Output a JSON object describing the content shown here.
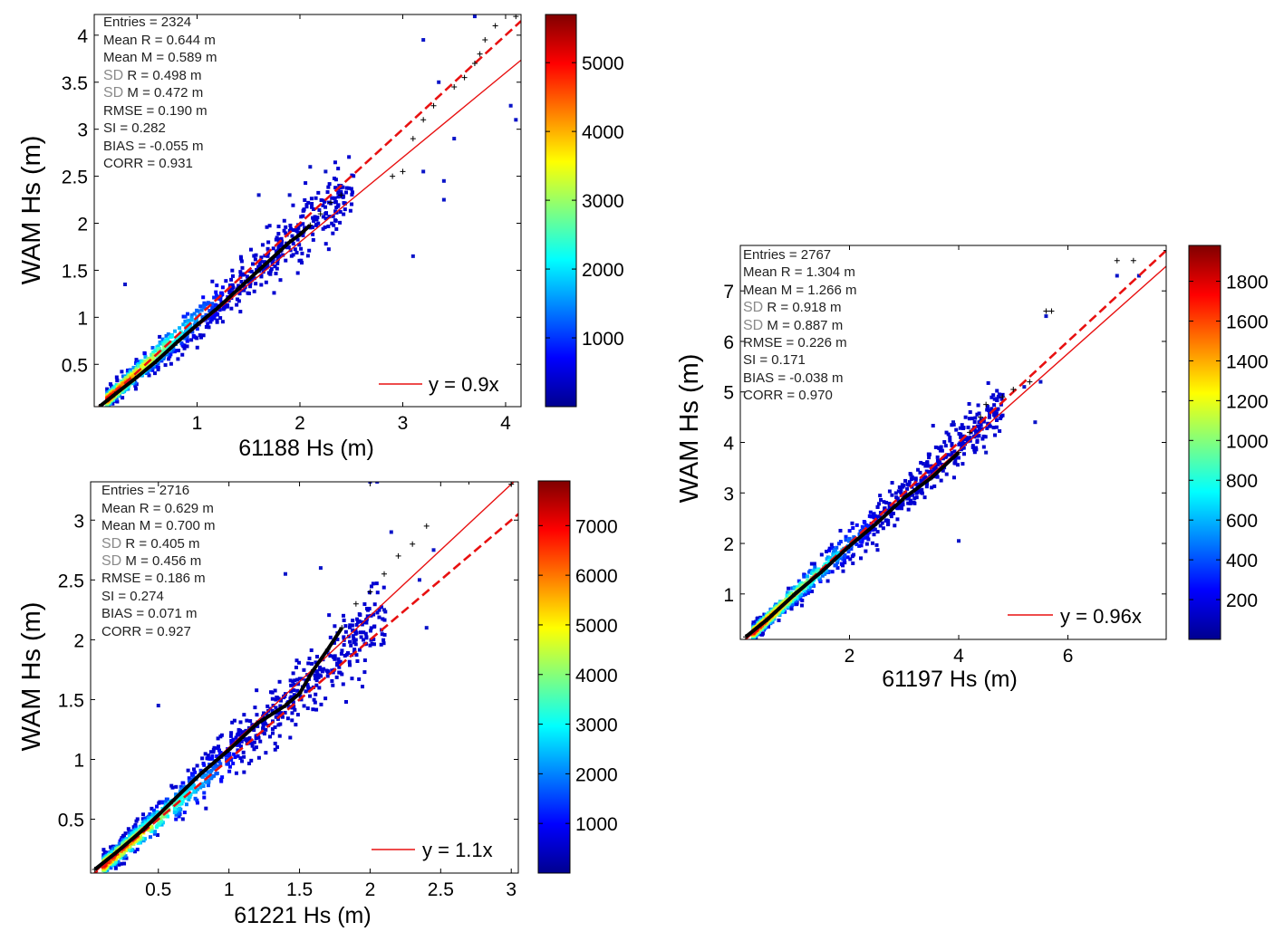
{
  "chart_data": [
    {
      "type": "scatter",
      "id": "panel-61188",
      "xlabel": "61188 Hs (m)",
      "ylabel": "WAM Hs (m)",
      "xlim": [
        0.0,
        4.15
      ],
      "ylim": [
        0.05,
        4.22
      ],
      "xticks": [
        1,
        2,
        3,
        4
      ],
      "yticks": [
        0.5,
        1,
        1.5,
        2,
        2.5,
        3,
        3.5,
        4
      ],
      "stats": {
        "entries": "Entries = 2324",
        "mean_r": "Mean R = 0.644 m",
        "mean_m": "Mean M = 0.589 m",
        "sd_r_prefix": "SD",
        "sd_r": " R = 0.498 m",
        "sd_m_prefix": "SD",
        "sd_m": " M = 0.472 m",
        "rmse": "RMSE = 0.190 m",
        "si": "SI = 0.282",
        "bias": "BIAS = -0.055 m",
        "corr": "CORR = 0.931"
      },
      "legend": "y = 0.9x",
      "fit_slope": 0.9,
      "dashed_slope": 1.0,
      "colorbar_range": [
        0,
        5700
      ],
      "colorbar_ticks": [
        1000,
        2000,
        3000,
        4000,
        5000
      ],
      "qq_points": [
        [
          0.05,
          0.05
        ],
        [
          0.2,
          0.18
        ],
        [
          0.4,
          0.35
        ],
        [
          0.6,
          0.53
        ],
        [
          0.8,
          0.73
        ],
        [
          1.0,
          0.92
        ],
        [
          1.2,
          1.1
        ],
        [
          1.4,
          1.3
        ],
        [
          1.6,
          1.5
        ],
        [
          1.8,
          1.7
        ],
        [
          1.9,
          1.8
        ],
        [
          2.0,
          1.88
        ],
        [
          2.1,
          1.98
        ],
        [
          2.2,
          2.1
        ],
        [
          2.3,
          2.22
        ],
        [
          2.4,
          2.3
        ],
        [
          2.9,
          2.5
        ],
        [
          3.0,
          2.55
        ],
        [
          3.1,
          2.9
        ],
        [
          3.2,
          3.1
        ],
        [
          3.3,
          3.25
        ],
        [
          3.5,
          3.45
        ],
        [
          3.6,
          3.55
        ],
        [
          3.7,
          3.7
        ],
        [
          3.75,
          3.8
        ],
        [
          3.8,
          3.95
        ],
        [
          3.9,
          4.1
        ],
        [
          4.1,
          4.2
        ]
      ],
      "outliers": [
        [
          0.3,
          1.35
        ],
        [
          3.1,
          1.65
        ],
        [
          3.4,
          2.45
        ],
        [
          3.4,
          2.25
        ],
        [
          3.5,
          2.9
        ],
        [
          4.05,
          3.25
        ],
        [
          4.1,
          3.1
        ],
        [
          3.2,
          3.95
        ],
        [
          3.35,
          3.5
        ],
        [
          3.7,
          4.2
        ],
        [
          3.2,
          2.55
        ],
        [
          2.1,
          2.6
        ],
        [
          2.25,
          2.55
        ],
        [
          1.6,
          2.3
        ],
        [
          2.4,
          2.4
        ],
        [
          1.9,
          2.3
        ]
      ],
      "scatter_spread": 0.18,
      "scatter_n": 900,
      "scatter_max": 2.4
    },
    {
      "type": "scatter",
      "id": "panel-61221",
      "xlabel": "61221 Hs (m)",
      "ylabel": "WAM Hs (m)",
      "xlim": [
        0.02,
        3.05
      ],
      "ylim": [
        0.05,
        3.32
      ],
      "xticks": [
        0.5,
        1,
        1.5,
        2,
        2.5,
        3
      ],
      "yticks": [
        0.5,
        1,
        1.5,
        2,
        2.5,
        3
      ],
      "stats": {
        "entries": "Entries = 2716",
        "mean_r": "Mean R = 0.629 m",
        "mean_m": "Mean M = 0.700 m",
        "sd_r_prefix": "SD",
        "sd_r": " R = 0.405 m",
        "sd_m_prefix": "SD",
        "sd_m": " M = 0.456 m",
        "rmse": "RMSE = 0.186 m",
        "si": "SI = 0.274",
        "bias": "BIAS = 0.071 m",
        "corr": "CORR = 0.927"
      },
      "legend": "y = 1.1x",
      "fit_slope": 1.1,
      "dashed_slope": 1.0,
      "colorbar_range": [
        0,
        7900
      ],
      "colorbar_ticks": [
        1000,
        2000,
        3000,
        4000,
        5000,
        6000,
        7000
      ],
      "qq_points": [
        [
          0.05,
          0.08
        ],
        [
          0.2,
          0.22
        ],
        [
          0.4,
          0.42
        ],
        [
          0.6,
          0.65
        ],
        [
          0.8,
          0.88
        ],
        [
          1.0,
          1.08
        ],
        [
          1.2,
          1.3
        ],
        [
          1.4,
          1.45
        ],
        [
          1.5,
          1.55
        ],
        [
          1.6,
          1.75
        ],
        [
          1.7,
          1.92
        ],
        [
          1.8,
          2.1
        ],
        [
          1.9,
          2.3
        ],
        [
          2.0,
          2.4
        ],
        [
          2.1,
          2.55
        ],
        [
          2.2,
          2.7
        ],
        [
          2.3,
          2.8
        ],
        [
          2.4,
          2.95
        ],
        [
          2.7,
          3.32
        ],
        [
          3.0,
          3.3
        ]
      ],
      "outliers": [
        [
          2.0,
          3.32
        ],
        [
          2.05,
          3.32
        ],
        [
          2.4,
          2.1
        ],
        [
          2.45,
          2.75
        ],
        [
          2.35,
          2.5
        ],
        [
          2.15,
          2.9
        ],
        [
          0.5,
          1.45
        ],
        [
          1.4,
          2.55
        ],
        [
          1.65,
          2.6
        ],
        [
          2.1,
          2.25
        ]
      ],
      "scatter_spread": 0.16,
      "scatter_n": 1000,
      "scatter_max": 2.0
    },
    {
      "type": "scatter",
      "id": "panel-61197",
      "xlabel": "61197 Hs (m)",
      "ylabel": "WAM Hs (m)",
      "xlim": [
        0.0,
        7.8
      ],
      "ylim": [
        0.1,
        7.9
      ],
      "xticks": [
        2,
        4,
        6
      ],
      "yticks": [
        1,
        2,
        3,
        4,
        5,
        6,
        7
      ],
      "stats": {
        "entries": "Entries = 2767",
        "mean_r": "Mean R = 1.304 m",
        "mean_m": "Mean M = 1.266 m",
        "sd_r_prefix": "SD",
        "sd_r": " R = 0.918 m",
        "sd_m_prefix": "SD",
        "sd_m": " M = 0.887 m",
        "rmse": "RMSE = 0.226 m",
        "si": "SI = 0.171",
        "bias": "BIAS = -0.038 m",
        "corr": "CORR = 0.970"
      },
      "legend": "y = 0.96x",
      "fit_slope": 0.96,
      "dashed_slope": 1.0,
      "colorbar_range": [
        0,
        1980
      ],
      "colorbar_ticks": [
        200,
        400,
        600,
        800,
        1000,
        1200,
        1400,
        1600,
        1800
      ],
      "qq_points": [
        [
          0.1,
          0.15
        ],
        [
          0.5,
          0.5
        ],
        [
          1.0,
          1.0
        ],
        [
          1.5,
          1.45
        ],
        [
          2.0,
          1.95
        ],
        [
          2.5,
          2.4
        ],
        [
          3.0,
          2.9
        ],
        [
          3.5,
          3.3
        ],
        [
          4.0,
          3.8
        ],
        [
          4.2,
          4.2
        ],
        [
          4.4,
          4.5
        ],
        [
          4.5,
          4.75
        ],
        [
          4.8,
          4.9
        ],
        [
          5.0,
          5.05
        ],
        [
          5.3,
          5.2
        ],
        [
          5.6,
          6.6
        ],
        [
          5.7,
          6.6
        ],
        [
          6.9,
          7.6
        ],
        [
          7.2,
          7.6
        ],
        [
          7.8,
          7.8
        ]
      ],
      "outliers": [
        [
          4.0,
          2.05
        ],
        [
          5.4,
          4.4
        ],
        [
          5.2,
          5.1
        ],
        [
          5.5,
          5.2
        ],
        [
          6.9,
          7.3
        ],
        [
          7.3,
          7.3
        ],
        [
          5.6,
          6.5
        ],
        [
          3.9,
          4.4
        ],
        [
          4.5,
          3.8
        ]
      ],
      "scatter_spread": 0.28,
      "scatter_n": 1000,
      "scatter_max": 4.6
    }
  ]
}
